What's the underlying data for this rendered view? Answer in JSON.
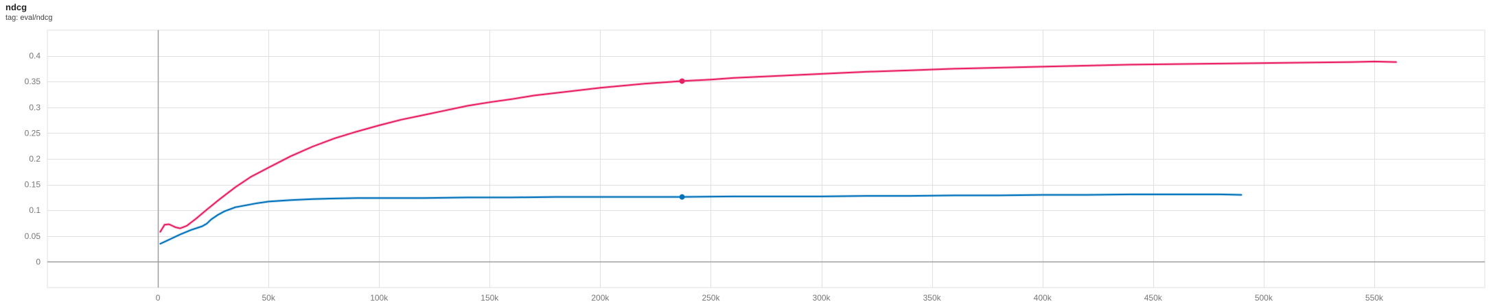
{
  "header": {
    "title": "ndcg",
    "tag": "tag: eval/ndcg"
  },
  "chart_data": {
    "type": "line",
    "title": "ndcg",
    "xlim": [
      -50000,
      600000
    ],
    "ylim": [
      -0.05,
      0.45
    ],
    "grid": true,
    "x_ticks": [
      {
        "value": 0,
        "label": "0"
      },
      {
        "value": 50000,
        "label": "50k"
      },
      {
        "value": 100000,
        "label": "100k"
      },
      {
        "value": 150000,
        "label": "150k"
      },
      {
        "value": 200000,
        "label": "200k"
      },
      {
        "value": 250000,
        "label": "250k"
      },
      {
        "value": 300000,
        "label": "300k"
      },
      {
        "value": 350000,
        "label": "350k"
      },
      {
        "value": 400000,
        "label": "400k"
      },
      {
        "value": 450000,
        "label": "450k"
      },
      {
        "value": 500000,
        "label": "500k"
      },
      {
        "value": 550000,
        "label": "550k"
      }
    ],
    "y_ticks": [
      {
        "value": 0,
        "label": "0"
      },
      {
        "value": 0.05,
        "label": "0.05"
      },
      {
        "value": 0.1,
        "label": "0.1"
      },
      {
        "value": 0.15,
        "label": "0.15"
      },
      {
        "value": 0.2,
        "label": "0.2"
      },
      {
        "value": 0.25,
        "label": "0.25"
      },
      {
        "value": 0.3,
        "label": "0.3"
      },
      {
        "value": 0.35,
        "label": "0.35"
      },
      {
        "value": 0.4,
        "label": "0.4"
      }
    ],
    "series": [
      {
        "color": "#e91e63",
        "highlight": {
          "x": 237000,
          "y": 0.351
        },
        "points": [
          [
            1000,
            0.058
          ],
          [
            3000,
            0.072
          ],
          [
            5000,
            0.073
          ],
          [
            8000,
            0.067
          ],
          [
            10000,
            0.065
          ],
          [
            13000,
            0.07
          ],
          [
            17000,
            0.083
          ],
          [
            22000,
            0.101
          ],
          [
            28000,
            0.122
          ],
          [
            35000,
            0.145
          ],
          [
            42000,
            0.165
          ],
          [
            50000,
            0.183
          ],
          [
            60000,
            0.205
          ],
          [
            70000,
            0.224
          ],
          [
            80000,
            0.24
          ],
          [
            90000,
            0.253
          ],
          [
            100000,
            0.265
          ],
          [
            110000,
            0.276
          ],
          [
            120000,
            0.285
          ],
          [
            130000,
            0.294
          ],
          [
            140000,
            0.303
          ],
          [
            150000,
            0.31
          ],
          [
            160000,
            0.316
          ],
          [
            170000,
            0.323
          ],
          [
            180000,
            0.328
          ],
          [
            190000,
            0.333
          ],
          [
            200000,
            0.338
          ],
          [
            210000,
            0.342
          ],
          [
            220000,
            0.346
          ],
          [
            230000,
            0.349
          ],
          [
            237000,
            0.351
          ],
          [
            250000,
            0.354
          ],
          [
            260000,
            0.357
          ],
          [
            270000,
            0.359
          ],
          [
            280000,
            0.361
          ],
          [
            290000,
            0.363
          ],
          [
            300000,
            0.365
          ],
          [
            320000,
            0.369
          ],
          [
            340000,
            0.372
          ],
          [
            360000,
            0.375
          ],
          [
            380000,
            0.377
          ],
          [
            400000,
            0.379
          ],
          [
            420000,
            0.381
          ],
          [
            440000,
            0.383
          ],
          [
            460000,
            0.384
          ],
          [
            480000,
            0.385
          ],
          [
            500000,
            0.386
          ],
          [
            520000,
            0.387
          ],
          [
            540000,
            0.388
          ],
          [
            550000,
            0.389
          ],
          [
            560000,
            0.388
          ]
        ]
      },
      {
        "color": "#0072bb",
        "highlight": {
          "x": 237000,
          "y": 0.126
        },
        "points": [
          [
            1000,
            0.035
          ],
          [
            5000,
            0.043
          ],
          [
            10000,
            0.053
          ],
          [
            15000,
            0.062
          ],
          [
            20000,
            0.069
          ],
          [
            22000,
            0.074
          ],
          [
            24000,
            0.082
          ],
          [
            27000,
            0.091
          ],
          [
            30000,
            0.098
          ],
          [
            35000,
            0.106
          ],
          [
            40000,
            0.11
          ],
          [
            45000,
            0.114
          ],
          [
            50000,
            0.117
          ],
          [
            60000,
            0.12
          ],
          [
            70000,
            0.122
          ],
          [
            80000,
            0.123
          ],
          [
            90000,
            0.124
          ],
          [
            100000,
            0.124
          ],
          [
            120000,
            0.124
          ],
          [
            140000,
            0.125
          ],
          [
            160000,
            0.125
          ],
          [
            180000,
            0.126
          ],
          [
            200000,
            0.126
          ],
          [
            220000,
            0.126
          ],
          [
            237000,
            0.126
          ],
          [
            260000,
            0.127
          ],
          [
            280000,
            0.127
          ],
          [
            300000,
            0.127
          ],
          [
            320000,
            0.128
          ],
          [
            340000,
            0.128
          ],
          [
            360000,
            0.129
          ],
          [
            380000,
            0.129
          ],
          [
            400000,
            0.13
          ],
          [
            420000,
            0.13
          ],
          [
            440000,
            0.131
          ],
          [
            460000,
            0.131
          ],
          [
            480000,
            0.131
          ],
          [
            490000,
            0.13
          ]
        ]
      }
    ]
  }
}
